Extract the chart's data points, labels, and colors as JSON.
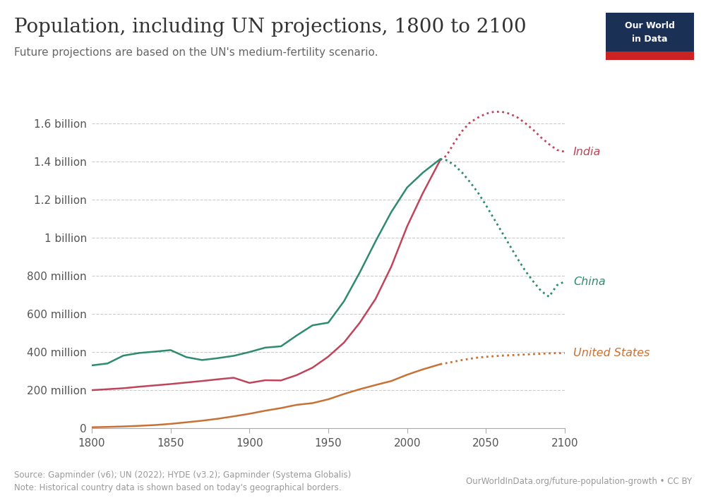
{
  "title": "Population, including UN projections, 1800 to 2100",
  "subtitle": "Future projections are based on the UN's medium-fertility scenario.",
  "source_text": "Source: Gapminder (v6); UN (2022); HYDE (v3.2); Gapminder (Systema Globalis)",
  "note_text": "Note: Historical country data is shown based on today's geographical borders.",
  "url_text": "OurWorldInData.org/future-population-growth • CC BY",
  "background_color": "#ffffff",
  "title_color": "#333333",
  "subtitle_color": "#666666",
  "grid_color": "#cccccc",
  "india_color": "#c0445a",
  "china_color": "#2e8b6f",
  "us_color": "#c87137",
  "xlim": [
    1800,
    2100
  ],
  "ylim": [
    0,
    1750000000
  ],
  "yticks": [
    0,
    200000000,
    400000000,
    600000000,
    800000000,
    1000000000,
    1200000000,
    1400000000,
    1600000000
  ],
  "ytick_labels": [
    "0",
    "200 million",
    "400 million",
    "600 million",
    "800 million",
    "1 billion",
    "1.2 billion",
    "1.4 billion",
    "1.6 billion"
  ],
  "xticks": [
    1800,
    1850,
    1900,
    1950,
    2000,
    2050,
    2100
  ],
  "projection_start_year": 2021,
  "india_historical": {
    "years": [
      1800,
      1810,
      1820,
      1830,
      1840,
      1850,
      1860,
      1870,
      1880,
      1890,
      1900,
      1910,
      1920,
      1930,
      1940,
      1950,
      1960,
      1970,
      1980,
      1990,
      2000,
      2010,
      2021
    ],
    "values": [
      200000000,
      205000000,
      210000000,
      218000000,
      225000000,
      232000000,
      240000000,
      248000000,
      257000000,
      265000000,
      238000000,
      252000000,
      251000000,
      279000000,
      318000000,
      376000000,
      450000000,
      554000000,
      679000000,
      849000000,
      1059000000,
      1234000000,
      1407000000
    ]
  },
  "india_projected": {
    "years": [
      2021,
      2025,
      2030,
      2035,
      2040,
      2045,
      2050,
      2055,
      2060,
      2065,
      2070,
      2075,
      2080,
      2085,
      2090,
      2095,
      2100
    ],
    "values": [
      1407000000,
      1430000000,
      1500000000,
      1560000000,
      1605000000,
      1630000000,
      1650000000,
      1660000000,
      1660000000,
      1650000000,
      1630000000,
      1600000000,
      1565000000,
      1525000000,
      1490000000,
      1460000000,
      1450000000
    ]
  },
  "china_historical": {
    "years": [
      1800,
      1810,
      1820,
      1830,
      1840,
      1850,
      1860,
      1870,
      1880,
      1890,
      1900,
      1910,
      1920,
      1930,
      1940,
      1950,
      1960,
      1970,
      1980,
      1990,
      2000,
      2010,
      2021
    ],
    "values": [
      330000000,
      340000000,
      381000000,
      395000000,
      402000000,
      410000000,
      373000000,
      358000000,
      368000000,
      380000000,
      400000000,
      423000000,
      430000000,
      487000000,
      540000000,
      554000000,
      667000000,
      818000000,
      981000000,
      1135000000,
      1263000000,
      1341000000,
      1412000000
    ]
  },
  "china_projected": {
    "years": [
      2021,
      2025,
      2030,
      2035,
      2040,
      2045,
      2050,
      2055,
      2060,
      2065,
      2070,
      2075,
      2080,
      2085,
      2090,
      2095,
      2100
    ],
    "values": [
      1412000000,
      1406000000,
      1380000000,
      1340000000,
      1290000000,
      1235000000,
      1170000000,
      1100000000,
      1030000000,
      960000000,
      890000000,
      825000000,
      770000000,
      720000000,
      690000000,
      750000000,
      770000000
    ]
  },
  "us_historical": {
    "years": [
      1800,
      1810,
      1820,
      1830,
      1840,
      1850,
      1860,
      1870,
      1880,
      1890,
      1900,
      1910,
      1920,
      1930,
      1940,
      1950,
      1960,
      1970,
      1980,
      1990,
      2000,
      2010,
      2021
    ],
    "values": [
      5300000,
      7200000,
      9600000,
      12900000,
      17000000,
      23100000,
      31400000,
      39800000,
      50100000,
      62600000,
      76200000,
      92200000,
      106000000,
      123000000,
      132000000,
      152000000,
      180000000,
      205000000,
      227000000,
      248000000,
      281000000,
      309000000,
      336000000
    ]
  },
  "us_projected": {
    "years": [
      2021,
      2025,
      2030,
      2035,
      2040,
      2045,
      2050,
      2055,
      2060,
      2065,
      2070,
      2075,
      2080,
      2085,
      2090,
      2095,
      2100
    ],
    "values": [
      336000000,
      342000000,
      350000000,
      358000000,
      365000000,
      371000000,
      375000000,
      378000000,
      381000000,
      383000000,
      385000000,
      387000000,
      389000000,
      391000000,
      393000000,
      394000000,
      394000000
    ]
  },
  "logo_bg": "#1a3055",
  "logo_red": "#cc2222"
}
